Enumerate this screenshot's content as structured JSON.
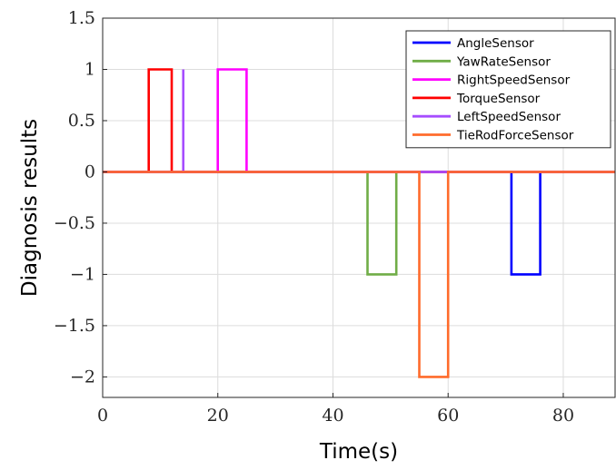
{
  "chart_data": {
    "type": "line",
    "xlabel": "Time(s)",
    "ylabel": "Diagnosis results",
    "xlim": [
      0,
      89
    ],
    "ylim": [
      -2.2,
      1.5
    ],
    "xticks": [
      0,
      20,
      40,
      60,
      80
    ],
    "yticks": [
      1.5,
      1,
      0.5,
      0,
      -0.5,
      -1,
      -1.5,
      -2
    ],
    "ytick_labels": [
      "1.5",
      "1",
      "0.5",
      "0",
      "−0.5",
      "−1",
      "−1.5",
      "−2"
    ],
    "grid": true,
    "legend_position": "top-right",
    "series": [
      {
        "name": "AngleSensor",
        "color": "#0000ff",
        "x": [
          0,
          71,
          71,
          76,
          76,
          89
        ],
        "y": [
          0,
          0,
          -1,
          -1,
          0,
          0
        ]
      },
      {
        "name": "YawRateSensor",
        "color": "#70ad47",
        "x": [
          0,
          46,
          46,
          51,
          51,
          89
        ],
        "y": [
          0,
          0,
          -1,
          -1,
          0,
          0
        ]
      },
      {
        "name": "RightSpeedSensor",
        "color": "#ff00ff",
        "x": [
          0,
          20,
          20,
          25,
          25,
          89
        ],
        "y": [
          0,
          0,
          1,
          1,
          0,
          0
        ]
      },
      {
        "name": "TorqueSensor",
        "color": "#ff0000",
        "x": [
          0,
          8,
          8,
          12,
          12,
          89
        ],
        "y": [
          0,
          0,
          1,
          1,
          0,
          0
        ]
      },
      {
        "name": "LeftSpeedSensor",
        "color": "#a64dff",
        "x": [
          0,
          14,
          14,
          14,
          14,
          89
        ],
        "y": [
          0,
          0,
          1,
          1,
          0,
          0
        ]
      },
      {
        "name": "TieRodForceSensor",
        "color": "#ff6b2b",
        "x": [
          0,
          55,
          55,
          60,
          60,
          89
        ],
        "y": [
          0,
          0,
          -2,
          -2,
          0,
          0
        ]
      }
    ]
  }
}
